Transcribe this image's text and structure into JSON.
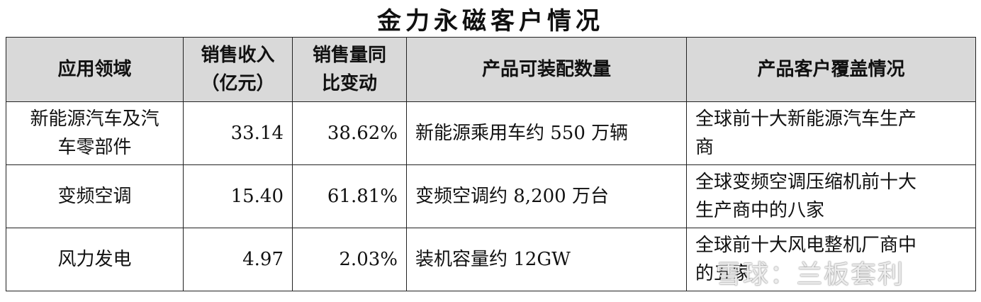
{
  "title": "金力永磁客户情况",
  "table": {
    "header": [
      [
        "应用领域"
      ],
      [
        "销售收入",
        "（亿元）"
      ],
      [
        "销售量同",
        "比变动"
      ],
      [
        "产品可装配数量"
      ],
      [
        "产品客户覆盖情况"
      ]
    ],
    "rows": [
      [
        [
          "新能源汽车及汽",
          "车零部件"
        ],
        [
          "33.14"
        ],
        [
          "38.62%"
        ],
        [
          "新能源乘用车约 550 万辆"
        ],
        [
          "全球前十大新能源汽车生产",
          "商"
        ]
      ],
      [
        [
          "变频空调"
        ],
        [
          "15.40"
        ],
        [
          "61.81%"
        ],
        [
          "变频空调约 8,200 万台"
        ],
        [
          "全球变频空调压缩机前十大",
          "生产商中的八家"
        ]
      ],
      [
        [
          "风力发电"
        ],
        [
          "4.97"
        ],
        [
          "2.03%"
        ],
        [
          "装机容量约 12GW"
        ],
        [
          "全球前十大风电整机厂商中",
          "的五家"
        ]
      ]
    ]
  },
  "watermark": "雪球：兰板套利"
}
